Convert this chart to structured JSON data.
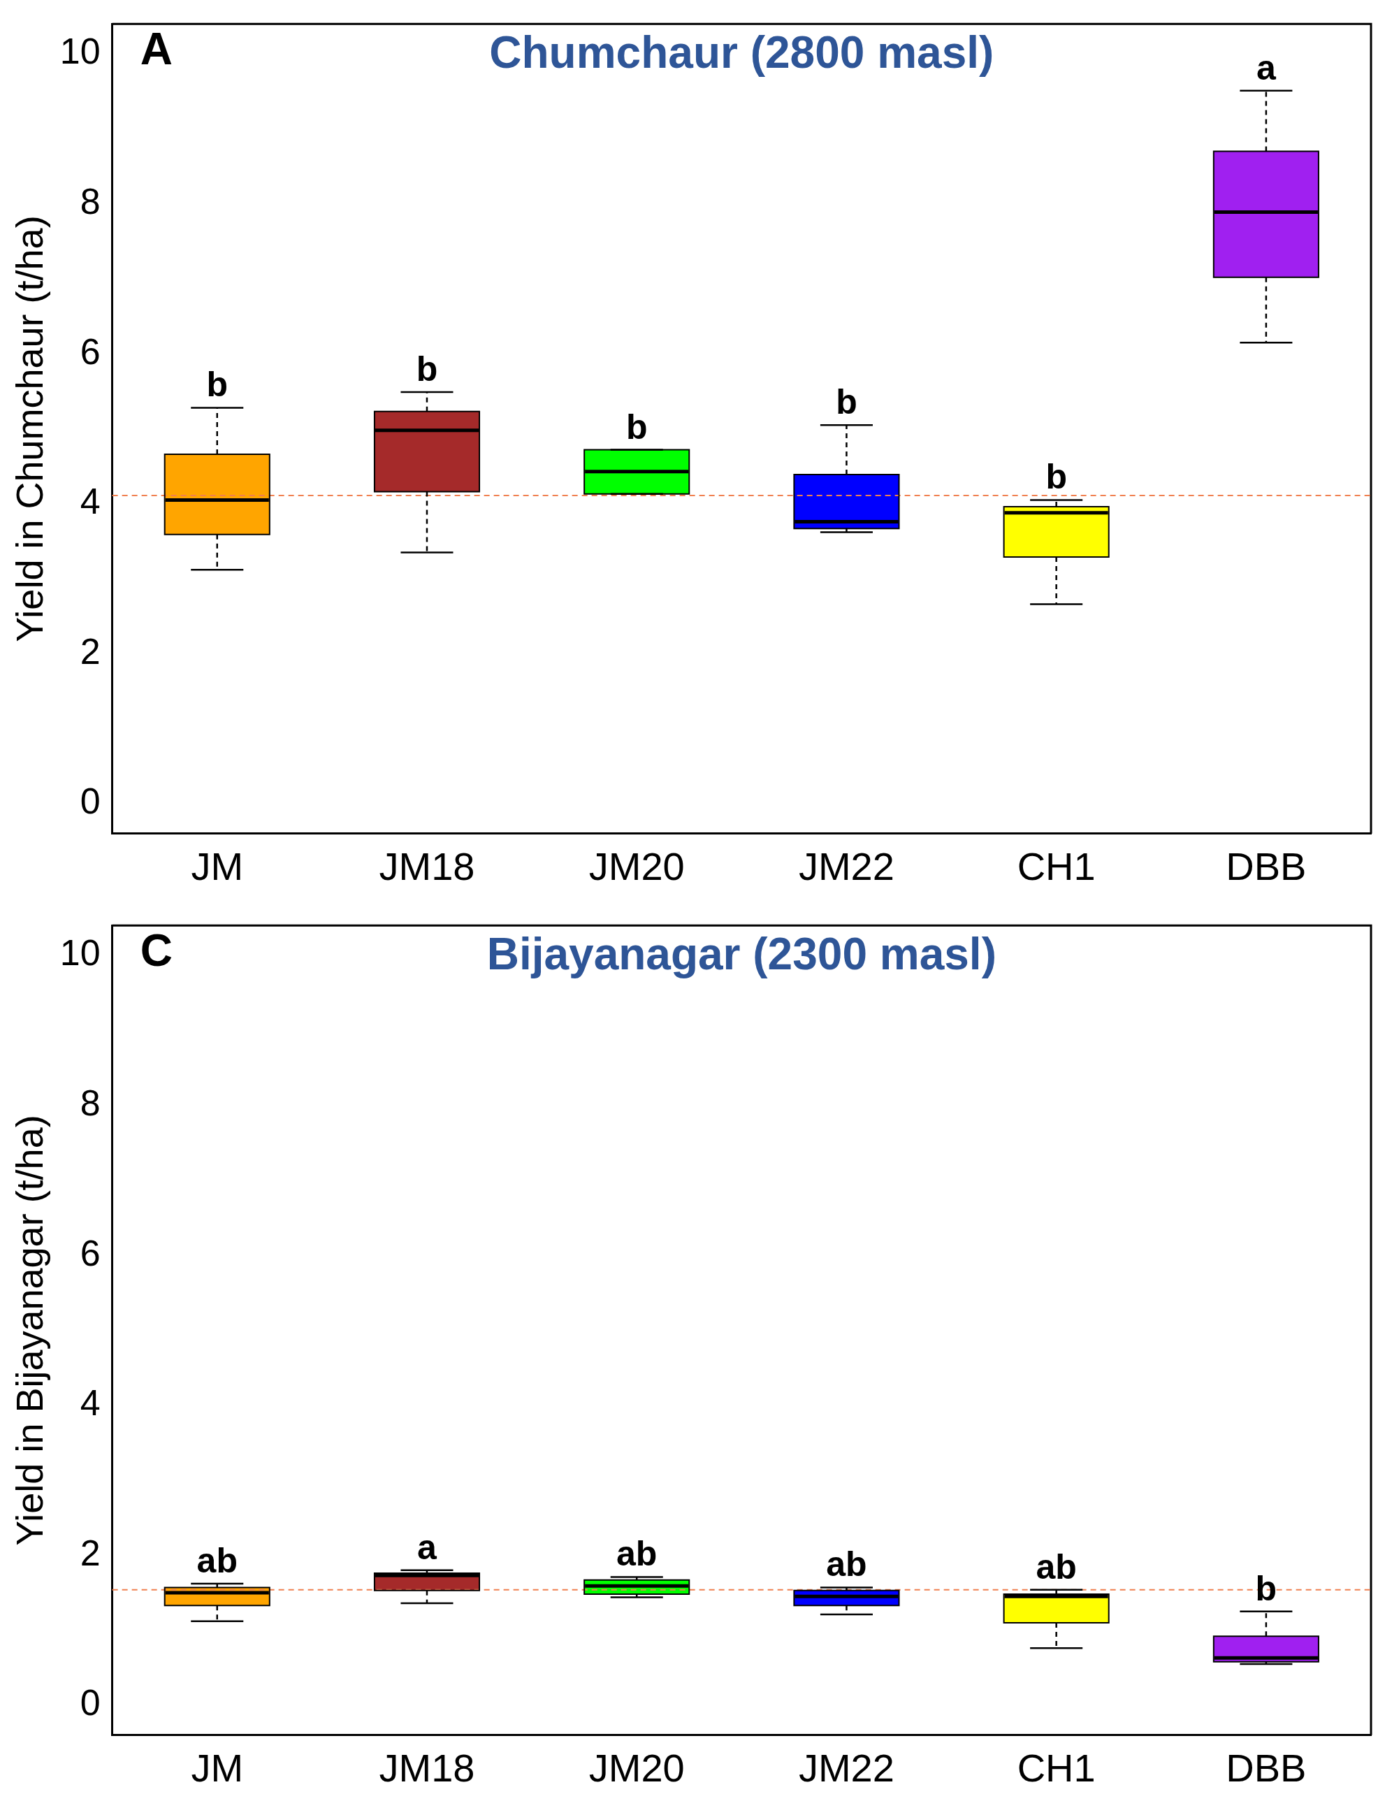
{
  "chart_data": [
    {
      "type": "box",
      "title": "Chumchaur (2800 masl)",
      "ylabel": "Yield in Chumchaur (t/ha)",
      "categories": [
        "JM",
        "JM18",
        "JM20",
        "JM22",
        "CH1",
        "DBB"
      ],
      "colors": [
        "#ffa500",
        "#a52a2a",
        "#00ff00",
        "#0000ff",
        "#ffff00",
        "#a020f0"
      ],
      "boxes": [
        {
          "low": 3.12,
          "q1": 3.59,
          "median": 4.05,
          "q3": 4.66,
          "high": 5.28
        },
        {
          "low": 3.35,
          "q1": 4.16,
          "median": 4.98,
          "q3": 5.23,
          "high": 5.49
        },
        {
          "low": 4.13,
          "q1": 4.13,
          "median": 4.43,
          "q3": 4.72,
          "high": 4.72
        },
        {
          "low": 3.62,
          "q1": 3.67,
          "median": 3.76,
          "q3": 4.39,
          "high": 5.05
        },
        {
          "low": 2.66,
          "q1": 3.29,
          "median": 3.88,
          "q3": 3.96,
          "high": 4.05
        },
        {
          "low": 6.15,
          "q1": 7.02,
          "median": 7.89,
          "q3": 8.7,
          "high": 9.51
        }
      ],
      "ylim": [
        -0.4,
        10.4
      ],
      "yticks": [
        0,
        2,
        4,
        6,
        8,
        10
      ],
      "grid": false,
      "legend": false,
      "ref_lines": [
        {
          "axis": "y",
          "value": 4.11,
          "color": "#f08050",
          "line_style": "dashed"
        }
      ],
      "annotations": [
        "A",
        "b",
        "b",
        "b",
        "b",
        "b",
        "a"
      ]
    },
    {
      "type": "box",
      "title": "Bijayanagar (2300 masl)",
      "ylabel": "Yield in Bijayanagar (t/ha)",
      "categories": [
        "JM",
        "JM18",
        "JM20",
        "JM22",
        "CH1",
        "DBB"
      ],
      "colors": [
        "#ffa500",
        "#a52a2a",
        "#00ff00",
        "#0000ff",
        "#ffff00",
        "#a020f0"
      ],
      "boxes": [
        {
          "low": 1.12,
          "q1": 1.33,
          "median": 1.5,
          "q3": 1.57,
          "high": 1.62
        },
        {
          "low": 1.36,
          "q1": 1.53,
          "median": 1.73,
          "q3": 1.76,
          "high": 1.8
        },
        {
          "low": 1.44,
          "q1": 1.48,
          "median": 1.59,
          "q3": 1.67,
          "high": 1.71
        },
        {
          "low": 1.21,
          "q1": 1.33,
          "median": 1.45,
          "q3": 1.53,
          "high": 1.57
        },
        {
          "low": 0.76,
          "q1": 1.1,
          "median": 1.45,
          "q3": 1.48,
          "high": 1.54
        },
        {
          "low": 0.55,
          "q1": 0.58,
          "median": 0.63,
          "q3": 0.92,
          "high": 1.25
        }
      ],
      "ylim": [
        -0.4,
        10.4
      ],
      "yticks": [
        0,
        2,
        4,
        6,
        8,
        10
      ],
      "grid": false,
      "legend": false,
      "ref_lines": [
        {
          "axis": "y",
          "value": 1.54,
          "color": "#f08050",
          "line_style": "dashed"
        }
      ],
      "annotations": [
        "C",
        "ab",
        "a",
        "ab",
        "ab",
        "ab",
        "b"
      ]
    }
  ]
}
